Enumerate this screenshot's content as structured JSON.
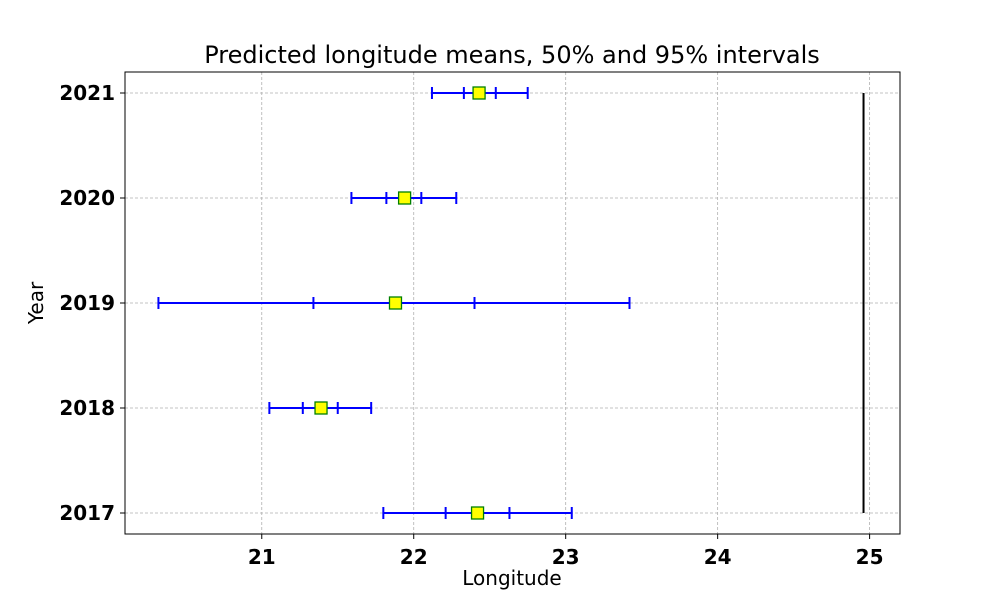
{
  "chart_data": {
    "type": "errorbar",
    "title": "Predicted longitude means, 50% and 95% intervals",
    "xlabel": "Longitude",
    "ylabel": "Year",
    "xlim": [
      20.1,
      25.2
    ],
    "ylim": [
      2016.8,
      2021.2
    ],
    "xticks": [
      21,
      22,
      23,
      24,
      25
    ],
    "yticks": [
      2017,
      2018,
      2019,
      2020,
      2021
    ],
    "grid": true,
    "colors": {
      "interval": "#0000ff",
      "marker_fill": "#ffff00",
      "marker_edge": "#008000",
      "reference_line": "#000000"
    },
    "series": [
      {
        "year": 2017,
        "mean": 22.42,
        "ci50": [
          22.21,
          22.63
        ],
        "ci95": [
          21.8,
          23.04
        ]
      },
      {
        "year": 2018,
        "mean": 21.39,
        "ci50": [
          21.27,
          21.5
        ],
        "ci95": [
          21.05,
          21.72
        ]
      },
      {
        "year": 2019,
        "mean": 21.88,
        "ci50": [
          21.34,
          22.4
        ],
        "ci95": [
          20.32,
          23.42
        ]
      },
      {
        "year": 2020,
        "mean": 21.94,
        "ci50": [
          21.82,
          22.05
        ],
        "ci95": [
          21.59,
          22.28
        ]
      },
      {
        "year": 2021,
        "mean": 22.43,
        "ci50": [
          22.33,
          22.54
        ],
        "ci95": [
          22.12,
          22.75
        ]
      }
    ],
    "reference_line": {
      "x": 24.96,
      "y_range": [
        2017,
        2021
      ]
    }
  }
}
